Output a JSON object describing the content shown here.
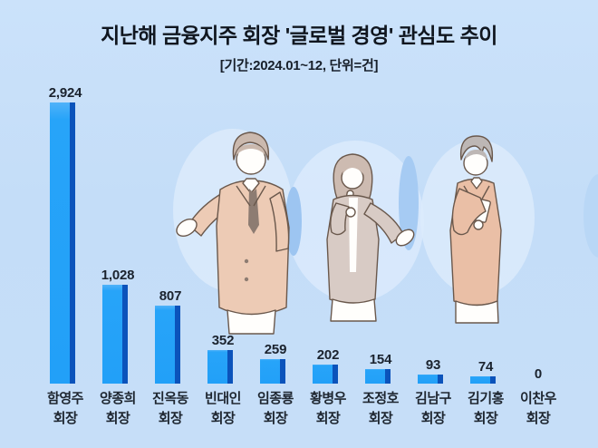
{
  "header": {
    "title": "지난해 금융지주 회장 '글로벌 경영' 관심도 추이",
    "subtitle": "[기간:2024.01~12, 단위=건]"
  },
  "chart_data": {
    "type": "bar",
    "title": "지난해 금융지주 회장 '글로벌 경영' 관심도 추이",
    "period_note": "[기간:2024.01~12, 단위=건]",
    "period": "2024.01~12",
    "unit": "건",
    "categories": [
      {
        "name": "함영주",
        "role": "회장"
      },
      {
        "name": "양종희",
        "role": "회장"
      },
      {
        "name": "진옥동",
        "role": "회장"
      },
      {
        "name": "빈대인",
        "role": "회장"
      },
      {
        "name": "임종룡",
        "role": "회장"
      },
      {
        "name": "황병우",
        "role": "회장"
      },
      {
        "name": "조정호",
        "role": "회장"
      },
      {
        "name": "김남구",
        "role": "회장"
      },
      {
        "name": "김기홍",
        "role": "회장"
      },
      {
        "name": "이찬우",
        "role": "회장"
      }
    ],
    "values": [
      2924,
      1028,
      807,
      352,
      259,
      202,
      154,
      93,
      74,
      0
    ],
    "value_labels": [
      "2,924",
      "1,028",
      "807",
      "352",
      "259",
      "202",
      "154",
      "93",
      "74",
      "0"
    ],
    "ylim": [
      0,
      2924
    ],
    "grid": false,
    "legend": "none",
    "bar_color": "#22a0f8",
    "bar_side_color": "#0b53bb",
    "background_color": "#c6def8",
    "text_color": "#1b232e"
  },
  "illustrations": {
    "items": [
      "man-presenting-illustration",
      "woman-with-microphone-illustration",
      "man-reading-document-illustration"
    ]
  }
}
